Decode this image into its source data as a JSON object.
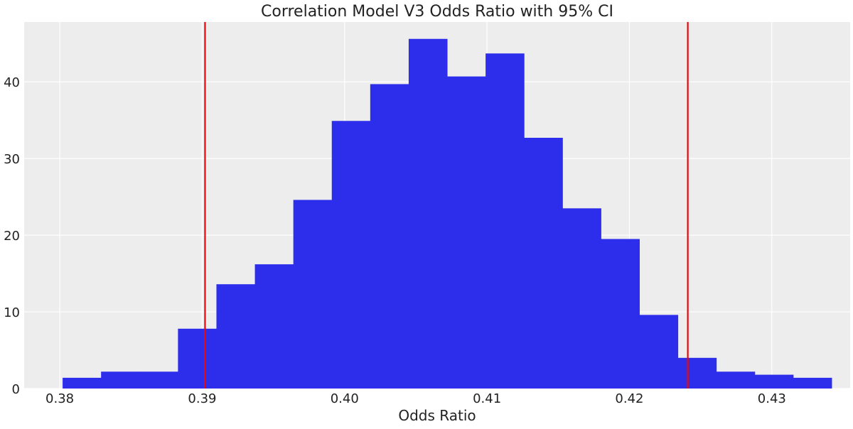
{
  "chart_data": {
    "type": "bar",
    "title": "Correlation Model V3 Odds Ratio with 95% CI",
    "xlabel": "Odds Ratio",
    "ylabel": "",
    "xlim": [
      0.3775,
      0.4355
    ],
    "ylim": [
      0,
      47.8
    ],
    "x_ticks": [
      0.38,
      0.39,
      0.4,
      0.41,
      0.42,
      0.43
    ],
    "x_tick_labels": [
      "0.38",
      "0.39",
      "0.40",
      "0.41",
      "0.42",
      "0.43"
    ],
    "y_ticks": [
      0,
      10,
      20,
      30,
      40
    ],
    "y_tick_labels": [
      "0",
      "10",
      "20",
      "30",
      "40"
    ],
    "grid": true,
    "bins": [
      {
        "x0": 0.3802,
        "x1": 0.3829,
        "value": 1.4
      },
      {
        "x0": 0.3829,
        "x1": 0.3856,
        "value": 2.2
      },
      {
        "x0": 0.3856,
        "x1": 0.3883,
        "value": 2.2
      },
      {
        "x0": 0.3883,
        "x1": 0.391,
        "value": 7.8
      },
      {
        "x0": 0.391,
        "x1": 0.3937,
        "value": 13.6
      },
      {
        "x0": 0.3937,
        "x1": 0.3964,
        "value": 16.2
      },
      {
        "x0": 0.3964,
        "x1": 0.3991,
        "value": 24.6
      },
      {
        "x0": 0.3991,
        "x1": 0.4018,
        "value": 34.9
      },
      {
        "x0": 0.4018,
        "x1": 0.4045,
        "value": 39.7
      },
      {
        "x0": 0.4045,
        "x1": 0.4072,
        "value": 45.6
      },
      {
        "x0": 0.4072,
        "x1": 0.4099,
        "value": 40.7
      },
      {
        "x0": 0.4099,
        "x1": 0.4126,
        "value": 43.7
      },
      {
        "x0": 0.4126,
        "x1": 0.4153,
        "value": 32.7
      },
      {
        "x0": 0.4153,
        "x1": 0.418,
        "value": 23.5
      },
      {
        "x0": 0.418,
        "x1": 0.4207,
        "value": 19.5
      },
      {
        "x0": 0.4207,
        "x1": 0.4234,
        "value": 9.6
      },
      {
        "x0": 0.4234,
        "x1": 0.4261,
        "value": 4.0
      },
      {
        "x0": 0.4261,
        "x1": 0.4288,
        "value": 2.2
      },
      {
        "x0": 0.4288,
        "x1": 0.4315,
        "value": 1.8
      },
      {
        "x0": 0.4315,
        "x1": 0.4342,
        "value": 1.4
      }
    ],
    "vlines": [
      {
        "x": 0.3902,
        "color": "#e6090b"
      },
      {
        "x": 0.4241,
        "color": "#e6090b"
      }
    ],
    "colors": {
      "bar": "#2d2eeb",
      "background": "#ededed",
      "grid": "#ffffff",
      "text": "#222222"
    }
  }
}
